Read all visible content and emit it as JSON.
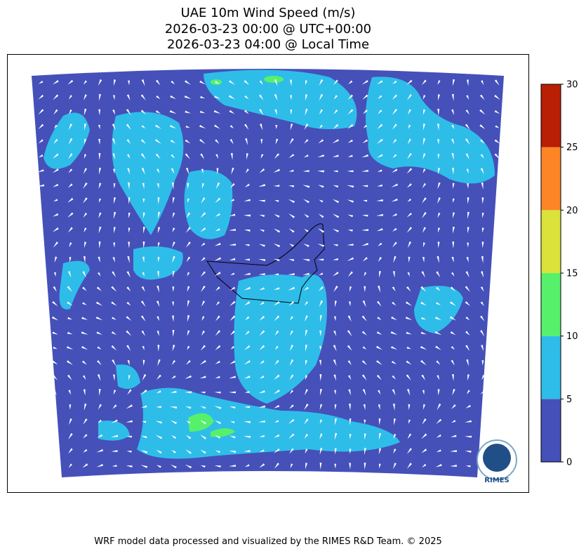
{
  "title": [
    "UAE 10m Wind Speed (m/s)",
    "2026-03-23 00:00 @ UTC+00:00",
    "2026-03-23 04:00 @ Local Time"
  ],
  "colorbar": {
    "ticks": [
      0,
      5,
      10,
      15,
      20,
      25,
      30
    ],
    "colors": [
      "#4650b9",
      "#2ebde9",
      "#57f06b",
      "#dbe23a",
      "#fd8526",
      "#b81f05"
    ]
  },
  "logo": "RIMES",
  "footer": "WRF model data processed and visualized by the RIMES R&D Team. © 2025"
}
